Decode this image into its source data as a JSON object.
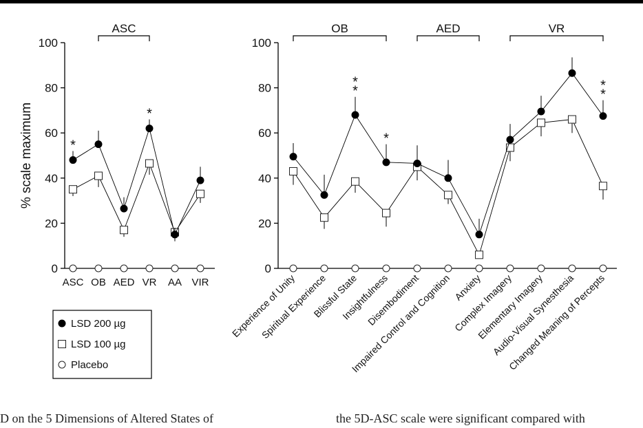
{
  "chart_data": [
    {
      "type": "line",
      "ylabel": "% scale maximum",
      "ylim": [
        0,
        100
      ],
      "yticks": [
        0,
        20,
        40,
        60,
        80,
        100
      ],
      "categories": [
        "ASC",
        "OB",
        "AED",
        "VR",
        "AA",
        "VIR"
      ],
      "brackets": [
        {
          "label": "ASC",
          "from": "OB",
          "to": "VR"
        }
      ],
      "series": [
        {
          "name": "LSD 200 µg",
          "marker": "filled-circle",
          "values": [
            48,
            55,
            26.5,
            62,
            15,
            39
          ],
          "errors": [
            4,
            6,
            5,
            4,
            3,
            6
          ]
        },
        {
          "name": "LSD 100 µg",
          "marker": "open-square",
          "values": [
            35,
            41,
            17,
            46.5,
            16,
            33
          ],
          "errors": [
            3,
            5,
            3,
            5,
            4,
            4
          ]
        },
        {
          "name": "Placebo",
          "marker": "open-circle",
          "values": [
            0,
            0,
            0,
            0,
            0,
            0
          ],
          "errors": [
            0,
            0,
            0,
            0,
            0,
            0
          ]
        }
      ],
      "significance": [
        {
          "category": "ASC",
          "label": "*"
        },
        {
          "category": "VR",
          "label": "*"
        }
      ]
    },
    {
      "type": "line",
      "ylabel": "",
      "ylim": [
        0,
        100
      ],
      "yticks": [
        0,
        20,
        40,
        60,
        80,
        100
      ],
      "categories": [
        "Experience of Unity",
        "Spiritual Experience",
        "Blissful State",
        "Insightfulness",
        "Disembodiment",
        "Impaired Control and Cognition",
        "Anxiety",
        "Complex Imagery",
        "Elementary Imagery",
        "Audio-Visual Synesthesia",
        "Changed Meaning of Percepts"
      ],
      "brackets": [
        {
          "label": "OB",
          "from": "Experience of Unity",
          "to": "Insightfulness"
        },
        {
          "label": "AED",
          "from": "Disembodiment",
          "to": "Anxiety"
        },
        {
          "label": "VR",
          "from": "Complex Imagery",
          "to": "Changed Meaning of Percepts"
        }
      ],
      "series": [
        {
          "name": "LSD 200 µg",
          "marker": "filled-circle",
          "values": [
            49.5,
            32.5,
            68,
            47,
            46.5,
            40,
            15,
            57,
            69.5,
            86.5,
            67.5
          ],
          "errors": [
            6,
            9,
            8,
            8,
            8,
            8,
            7,
            7,
            7,
            7,
            7
          ]
        },
        {
          "name": "LSD 100 µg",
          "marker": "open-square",
          "values": [
            43,
            22.5,
            38.5,
            24.5,
            45,
            32.5,
            6,
            53.5,
            64.5,
            66,
            36.5
          ],
          "errors": [
            6,
            5,
            5,
            6,
            6,
            4,
            0,
            6,
            6,
            6,
            6
          ]
        },
        {
          "name": "Placebo",
          "marker": "open-circle",
          "values": [
            0,
            0,
            0,
            0,
            0,
            0,
            0,
            0,
            0,
            0,
            0
          ],
          "errors": [
            0,
            0,
            0,
            0,
            0,
            0,
            0,
            0,
            0,
            0,
            0
          ]
        }
      ],
      "significance": [
        {
          "category": "Blissful State",
          "label": "**"
        },
        {
          "category": "Insightfulness",
          "label": "*"
        },
        {
          "category": "Changed Meaning of Percepts",
          "label": "**"
        }
      ]
    }
  ],
  "legend": [
    {
      "label": "LSD 200 µg",
      "marker": "filled-circle"
    },
    {
      "label": "LSD 100 µg",
      "marker": "open-square"
    },
    {
      "label": "Placebo",
      "marker": "open-circle"
    }
  ],
  "caption": {
    "left": "D on the 5 Dimensions of Altered States of",
    "right": "the 5D-ASC scale were significant compared with"
  }
}
